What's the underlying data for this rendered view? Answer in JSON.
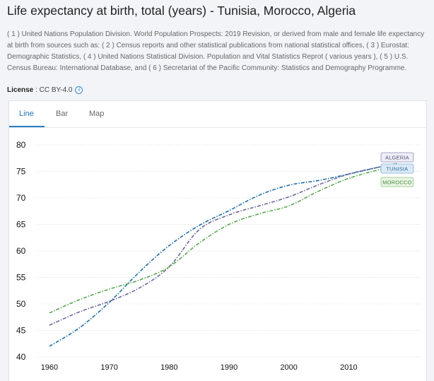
{
  "header": {
    "title": "Life expectancy at birth, total (years) - Tunisia, Morocco, Algeria",
    "sources": "( 1 ) United Nations Population Division. World Population Prospects: 2019 Revision, or derived from male and female life expectancy at birth from sources such as: ( 2 ) Census reports and other statistical publications from national statistical offices, ( 3 ) Eurostat: Demographic Statistics, ( 4 ) United Nations Statistical Division. Population and Vital Statistics Reprot ( various years ), ( 5 ) U.S. Census Bureau: International Database, and ( 6 ) Secretariat of the Pacific Community: Statistics and Demography Programme.",
    "license_label": "License",
    "license_value": "CC BY-4.0",
    "info_glyph": "i"
  },
  "tabs": [
    {
      "label": "Line"
    },
    {
      "label": "Bar"
    },
    {
      "label": "Map"
    }
  ],
  "colors": {
    "ALGERIA": "#1f6ea8",
    "TUNISIA": "#6a679b",
    "MOROCCO": "#5aa64f"
  },
  "chart_data": {
    "type": "line",
    "title": "Life expectancy at birth, total (years) - Tunisia, Morocco, Algeria",
    "xlabel": "",
    "ylabel": "",
    "ylim": [
      40,
      80
    ],
    "yticks": [
      40,
      45,
      50,
      55,
      60,
      65,
      70,
      75,
      80
    ],
    "xticks": [
      1960,
      1970,
      1980,
      1990,
      2000,
      2010
    ],
    "grid": true,
    "x": [
      1960,
      1965,
      1970,
      1975,
      1980,
      1985,
      1990,
      1995,
      2000,
      2005,
      2010,
      2015,
      2018
    ],
    "series": [
      {
        "name": "ALGERIA",
        "legend": "ALGERIA",
        "values": [
          42.0,
          45.5,
          50.3,
          56.0,
          61.0,
          64.8,
          67.6,
          70.5,
          72.4,
          73.3,
          74.5,
          75.8,
          76.5
        ]
      },
      {
        "name": "TUNISIA",
        "legend": "TUNISIA",
        "values": [
          46.0,
          48.5,
          50.5,
          53.0,
          57.0,
          64.0,
          66.8,
          68.5,
          70.2,
          72.5,
          74.5,
          75.8,
          76.5
        ]
      },
      {
        "name": "MOROCCO",
        "legend": "MOROCCO",
        "values": [
          48.3,
          50.8,
          52.8,
          54.5,
          57.0,
          61.5,
          65.0,
          67.0,
          68.5,
          71.3,
          73.7,
          75.3,
          76.0
        ]
      }
    ]
  }
}
